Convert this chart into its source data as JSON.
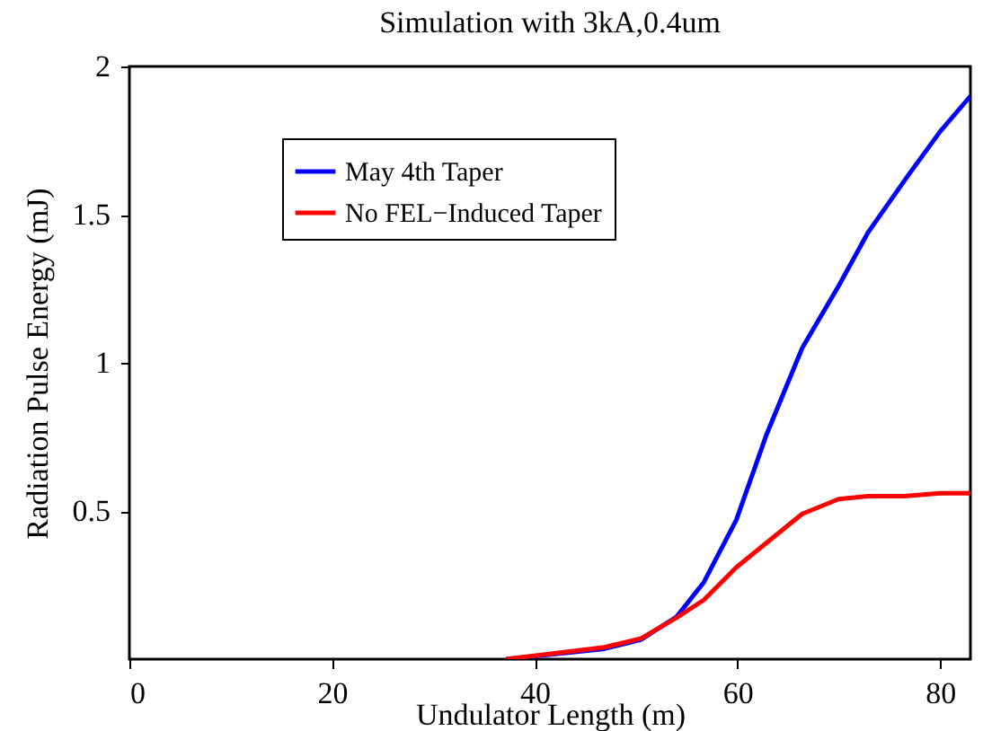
{
  "chart_data": {
    "type": "line",
    "title": "Simulation with 3kA,0.4um",
    "xlabel": "Undulator Length (m)",
    "ylabel": "Radiation Pulse Energy (mJ)",
    "xlim": [
      0,
      83
    ],
    "ylim": [
      0,
      2
    ],
    "xticks": [
      0,
      20,
      40,
      60,
      80
    ],
    "yticks": [
      0.5,
      1,
      1.5,
      2
    ],
    "grid": false,
    "legend": "top left",
    "line_style": "solid",
    "marker": "none",
    "series": [
      {
        "name": "May 4th Taper",
        "color": "#0000ff",
        "x": [
          37.2,
          46.9,
          50.5,
          54,
          56.7,
          59.9,
          62.9,
          66.4,
          70,
          72.9,
          76.8,
          80,
          83
        ],
        "values": [
          0,
          0.035,
          0.066,
          0.143,
          0.26,
          0.47,
          0.76,
          1.05,
          1.26,
          1.44,
          1.63,
          1.78,
          1.9
        ]
      },
      {
        "name": "No FEL−Induced Taper",
        "color": "#ff0000",
        "x": [
          37.2,
          46.9,
          50.5,
          54,
          56.7,
          59.9,
          63.5,
          66.4,
          70,
          72.9,
          76.5,
          80,
          83
        ],
        "values": [
          0,
          0.04,
          0.07,
          0.14,
          0.2,
          0.31,
          0.41,
          0.49,
          0.54,
          0.55,
          0.55,
          0.56,
          0.56
        ]
      }
    ]
  }
}
